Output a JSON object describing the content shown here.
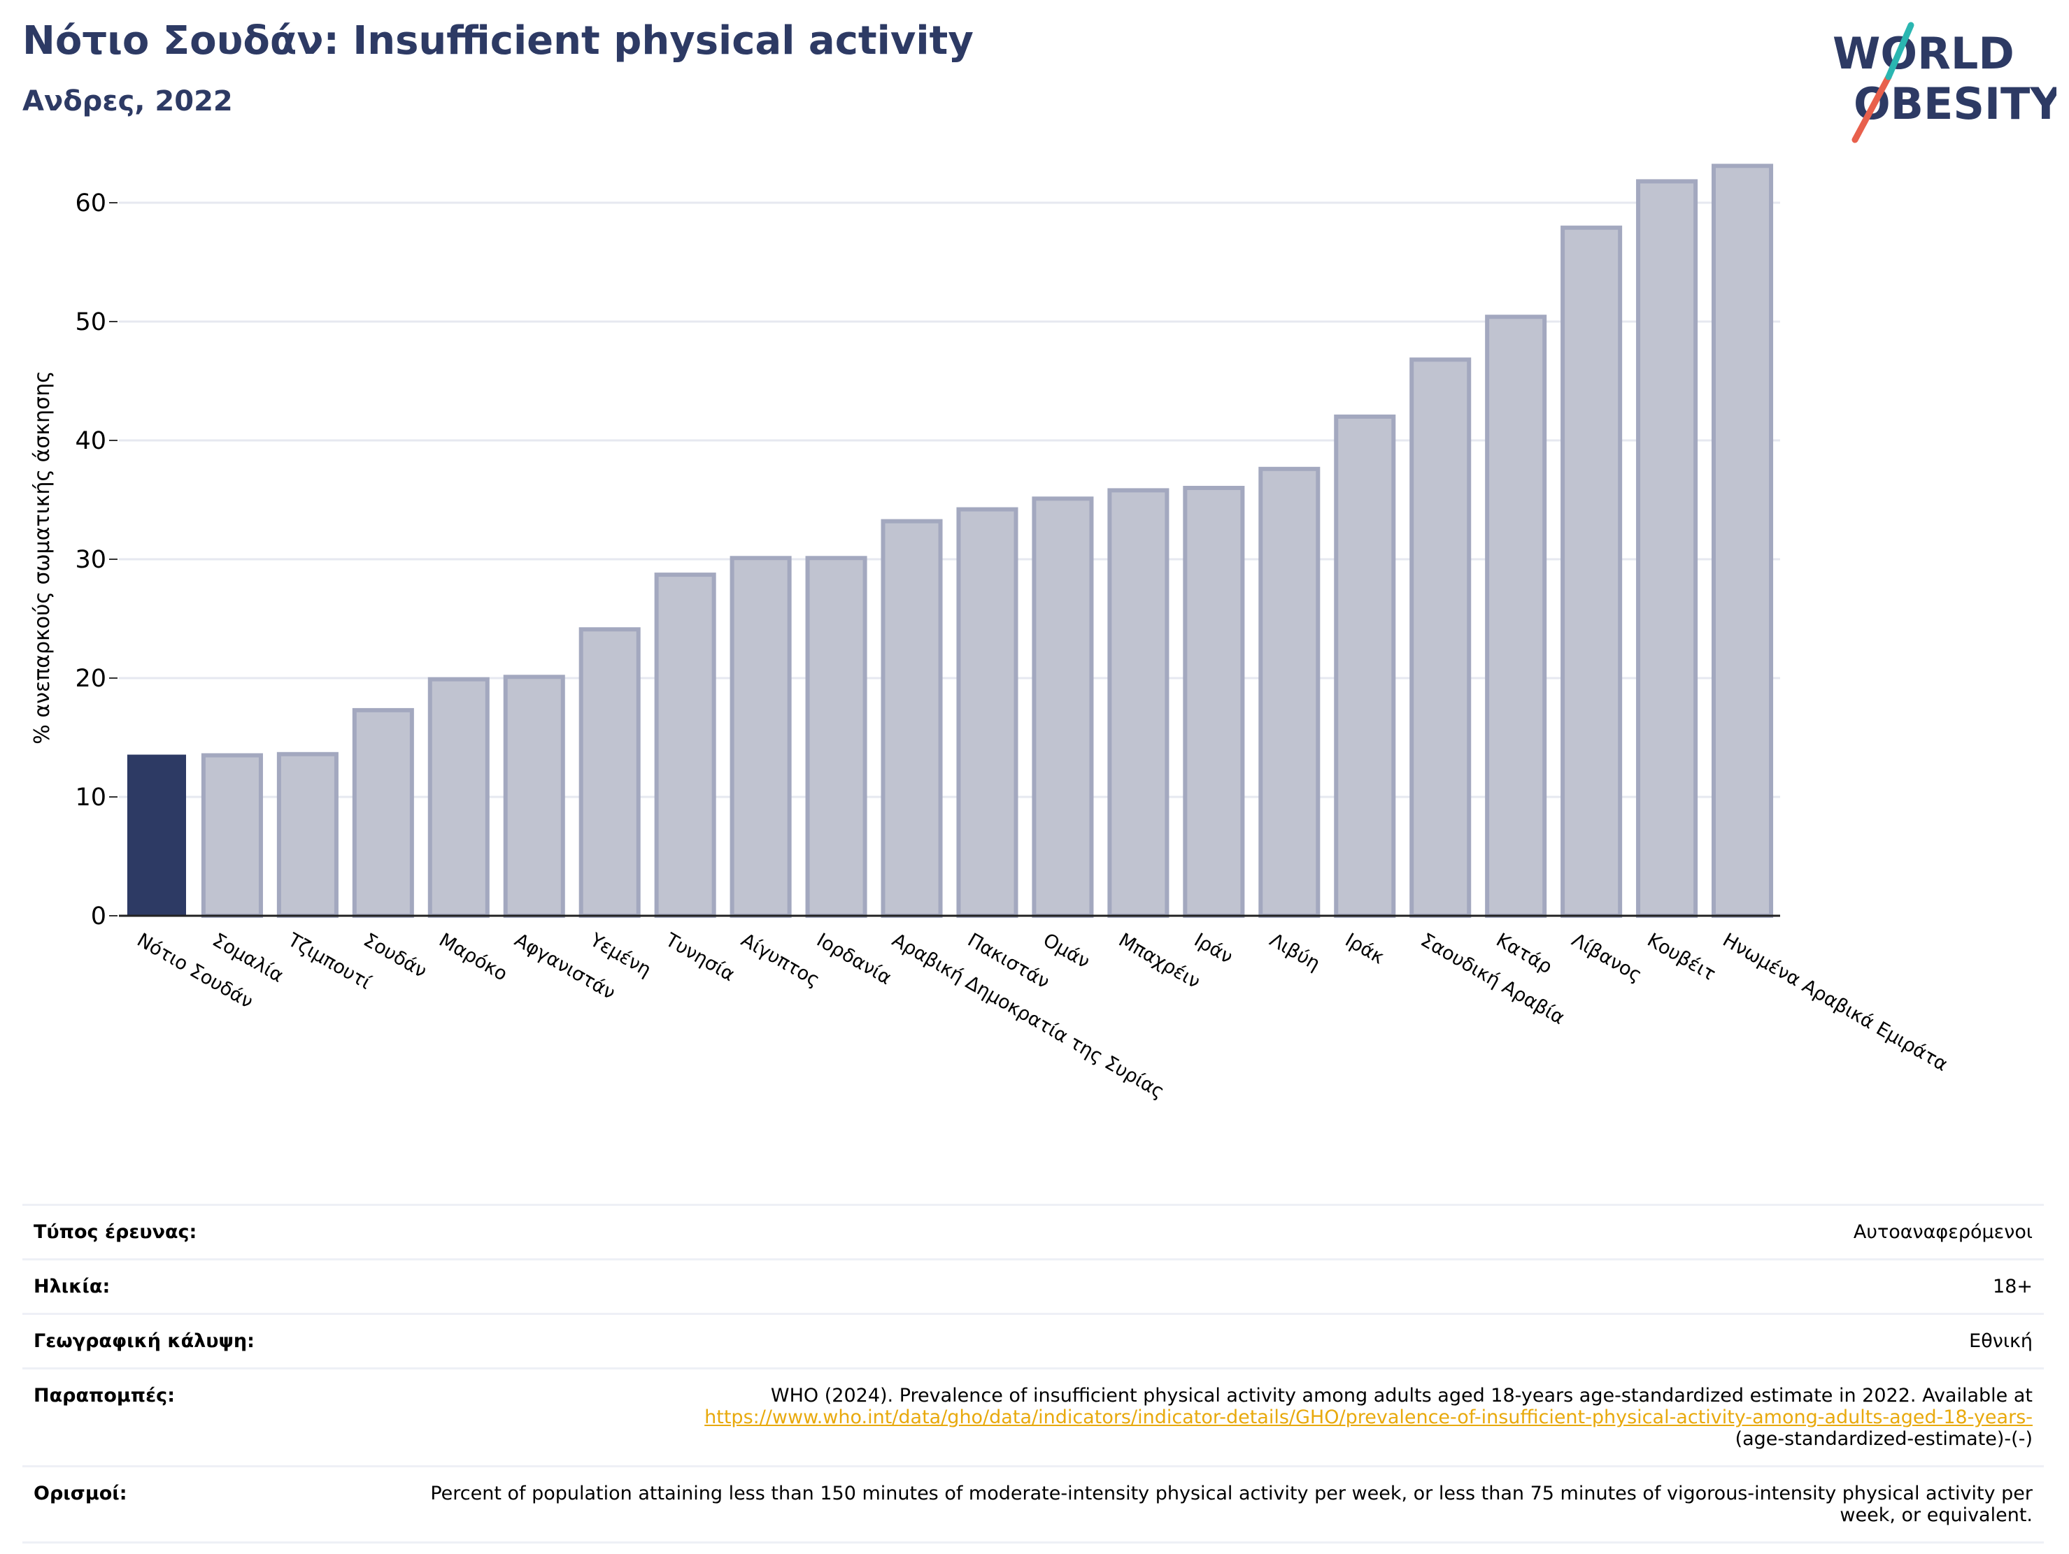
{
  "header": {
    "title": "Νότιο Σουδάν: Insufficient physical activity",
    "subtitle": "Ανδρες, 2022"
  },
  "logo": {
    "line1": "WORLD",
    "line2": "OBESITY",
    "text_color": "#2d3a64",
    "slash_colors": [
      "#e8604c",
      "#2bb6b1"
    ]
  },
  "colors": {
    "highlight_bar": "#2d3a64",
    "other_bar_fill": "#c0c3d0",
    "other_bar_stroke": "#a3a8bf",
    "grid": "#e6e8f0",
    "link": "#e8a90c"
  },
  "chart_data": {
    "type": "bar",
    "ylabel": "% ανεπαρκούς σωματικής άσκησης",
    "ylim": [
      0,
      65
    ],
    "yticks": [
      0,
      10,
      20,
      30,
      40,
      50,
      60
    ],
    "grid": true,
    "highlight": "Νότιο Σουδάν",
    "categories": [
      "Νότιο Σουδάν",
      "Σομαλία",
      "Τζιμπουτί",
      "Σουδάν",
      "Μαρόκο",
      "Αφγανιστάν",
      "Υεμένη",
      "Τυνησία",
      "Αίγυπτος",
      "Ιορδανία",
      "Αραβική Δημοκρατία της Συρίας",
      "Πακιστάν",
      "Ομάν",
      "Μπαχρέιν",
      "Ιράν",
      "Λιβύη",
      "Ιράκ",
      "Σαουδική Αραβία",
      "Κατάρ",
      "Λίβανος",
      "Κουβέιτ",
      "Ηνωμένα Αραβικά Εμιράτα"
    ],
    "values": [
      13.5,
      13.5,
      13.6,
      17.3,
      19.9,
      20.1,
      24.1,
      28.7,
      30.1,
      30.1,
      33.2,
      34.2,
      35.1,
      35.8,
      36.0,
      37.6,
      42.0,
      46.8,
      50.4,
      57.9,
      61.8,
      63.1
    ]
  },
  "meta": [
    {
      "label": "Τύπος έρευνας:",
      "value": "Αυτοαναφερόμενοι"
    },
    {
      "label": "Ηλικία:",
      "value": "18+"
    },
    {
      "label": "Γεωγραφική κάλυψη:",
      "value": "Εθνική"
    },
    {
      "label": "Παραπομπές:",
      "value_pre": "WHO (2024). Prevalence of insufficient physical activity among adults aged 18-years age-standardized estimate in 2022. Available at",
      "link": "https://www.who.int/data/gho/data/indicators/indicator-details/GHO/prevalence-of-insufficient-physical-activity-among-adults-aged-18-years-",
      "value_post": "(age-standardized-estimate)-(-)"
    },
    {
      "label": "Ορισμοί:",
      "value": "Percent of population attaining less than 150 minutes of moderate-intensity physical activity per week, or less than 75 minutes of vigorous-intensity physical activity per week, or equivalent."
    }
  ]
}
